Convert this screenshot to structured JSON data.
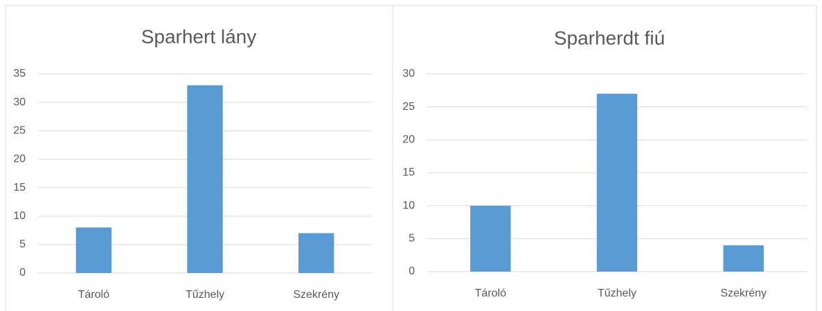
{
  "chart_data": [
    {
      "type": "bar",
      "title": "Sparhert lány",
      "categories": [
        "Tároló",
        "Tűzhely",
        "Szekrény"
      ],
      "values": [
        8,
        33,
        7
      ],
      "color": "#5b9bd5",
      "ylim": [
        0,
        35
      ],
      "yticks": [
        0,
        5,
        10,
        15,
        20,
        25,
        30,
        35
      ],
      "grid": true
    },
    {
      "type": "bar",
      "title": "Sparherdt fiú",
      "categories": [
        "Tároló",
        "Tűzhely",
        "Szekrény"
      ],
      "values": [
        10,
        27,
        4
      ],
      "color": "#5b9bd5",
      "ylim": [
        0,
        30
      ],
      "yticks": [
        0,
        5,
        10,
        15,
        20,
        25,
        30
      ],
      "grid": true
    }
  ]
}
